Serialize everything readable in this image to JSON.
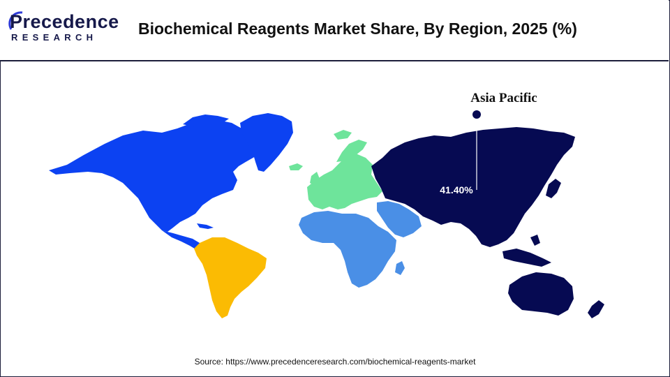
{
  "header": {
    "logo": {
      "line1": "Precedence",
      "line2": "RESEARCH"
    },
    "title": "Biochemical Reagents Market Share, By Region, 2025 (%)"
  },
  "map": {
    "regions": [
      {
        "name": "North America",
        "color": "#0c42f2"
      },
      {
        "name": "Latin America",
        "color": "#fbbb03"
      },
      {
        "name": "Europe",
        "color": "#6ee49b"
      },
      {
        "name": "Middle East and Africa",
        "color": "#4a8fe6"
      },
      {
        "name": "Asia Pacific",
        "color": "#060a52"
      }
    ],
    "callout": {
      "region": "Asia Pacific",
      "value": "41.40%"
    }
  },
  "footer": {
    "source": "Source: https://www.precedenceresearch.com/biochemical-reagents-market"
  }
}
